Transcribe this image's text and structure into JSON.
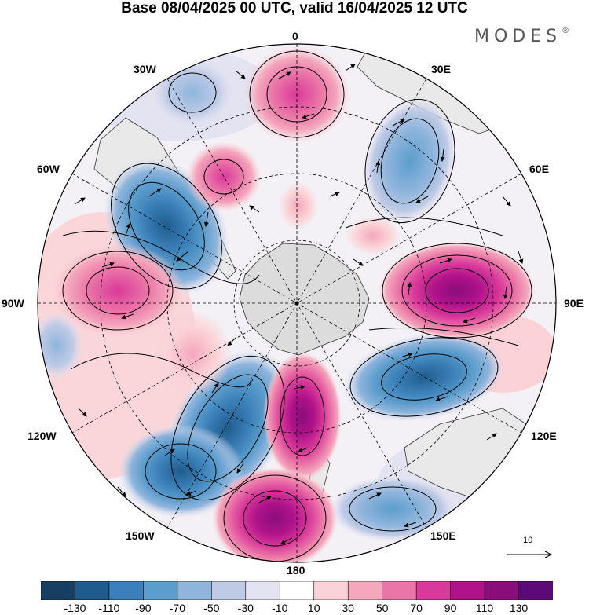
{
  "title": "Base 08/04/2025 00 UTC, valid 16/04/2025 12 UTC",
  "brand": {
    "name": "MODES",
    "mark": "®"
  },
  "lon_labels": {
    "top": "0",
    "bottom": "180",
    "left": "90W",
    "right": "90E",
    "nw": "30W",
    "ne": "30E",
    "wnw": "60W",
    "ene": "60E",
    "wsw": "120W",
    "ese": "120E",
    "sw": "150W",
    "se": "150E"
  },
  "vector_scale": {
    "label": "10"
  },
  "colorbar": {
    "labels": [
      "-130",
      "-110",
      "-90",
      "-70",
      "-50",
      "-30",
      "-10",
      "10",
      "30",
      "50",
      "70",
      "90",
      "110",
      "130"
    ],
    "colors": [
      "#173e63",
      "#1f5c8d",
      "#3b80b8",
      "#5b9dcc",
      "#8fb5dc",
      "#bfcbe6",
      "#e4e3f1",
      "#ffffff",
      "#fbd3d6",
      "#f4a7bd",
      "#ea75a7",
      "#d9399a",
      "#b0128a",
      "#8a0d7c",
      "#5d0a78"
    ]
  },
  "colors": {
    "land": "#e9e9e9",
    "antarctica": "#dcdcdc",
    "boundary": "#000000"
  }
}
